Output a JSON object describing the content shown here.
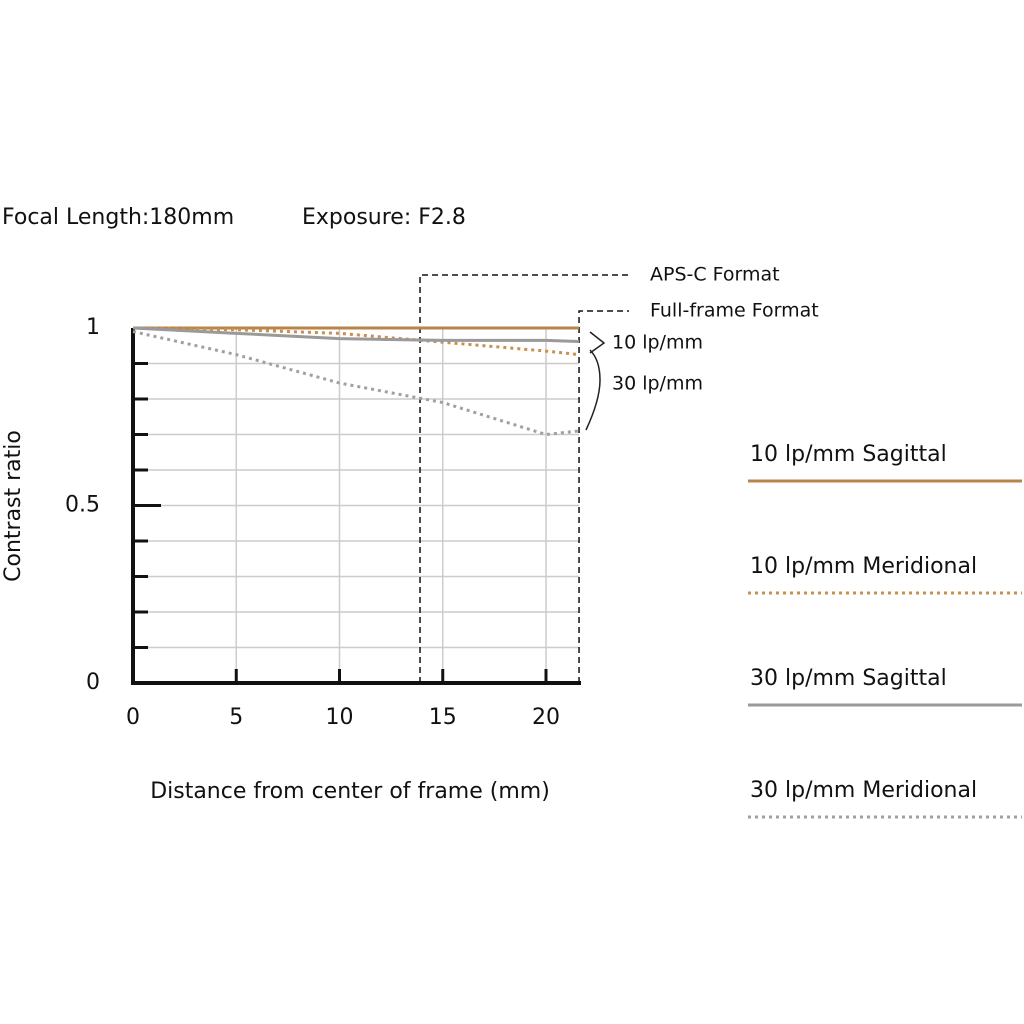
{
  "chart_data": {
    "type": "line",
    "header": [
      "Focal Length:180mm",
      "Exposure: F2.8"
    ],
    "xlabel": "Distance from center of frame (mm)",
    "ylabel": "Contrast ratio",
    "x": [
      0,
      5,
      10,
      15,
      20,
      21.6
    ],
    "series": [
      {
        "name": "10 lp/mm Sagittal",
        "color": "#b8844a",
        "dash": "solid",
        "values": [
          1,
          1,
          1,
          1,
          1,
          1
        ]
      },
      {
        "name": "10 lp/mm Meridional",
        "color": "#c98f4e",
        "dash": "dotted",
        "values": [
          1,
          0.995,
          0.985,
          0.96,
          0.935,
          0.925
        ]
      },
      {
        "name": "30 lp/mm Sagittal",
        "color": "#9a9a9a",
        "dash": "solid",
        "values": [
          1,
          0.985,
          0.97,
          0.965,
          0.965,
          0.962
        ]
      },
      {
        "name": "30 lp/mm Meridional",
        "color": "#a0a0a0",
        "dash": "dotted",
        "values": [
          0.99,
          0.925,
          0.845,
          0.79,
          0.7,
          0.71
        ]
      }
    ],
    "xlim": [
      0,
      21.6
    ],
    "ylim": [
      0,
      1
    ],
    "xticks": [
      0,
      5,
      10,
      15,
      20
    ],
    "yticks": [
      0,
      0.5,
      1
    ],
    "y_minor_ticks": [
      0.1,
      0.2,
      0.3,
      0.4,
      0.6,
      0.7,
      0.8,
      0.9
    ],
    "grid": true,
    "format_markers": [
      {
        "label": "APS-C Format",
        "x": 13.9
      },
      {
        "label": "Full-frame Format",
        "x": 21.6
      }
    ],
    "bracket_labels": [
      "10 lp/mm",
      "30 lp/mm"
    ]
  }
}
